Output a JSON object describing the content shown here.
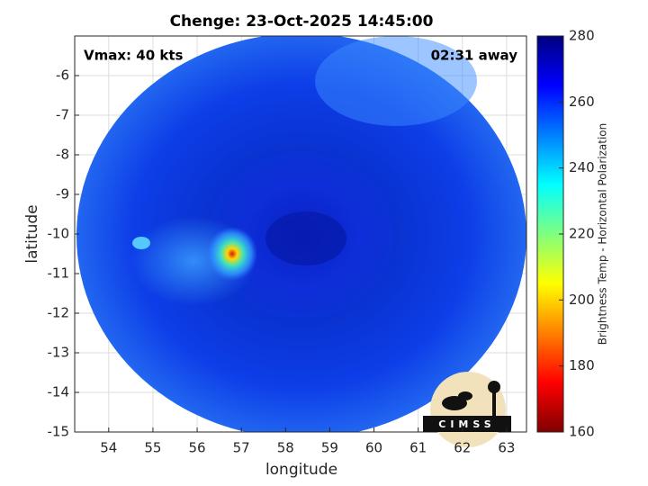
{
  "chart_data": {
    "type": "image",
    "title": "Chenge: 23-Oct-2025 14:45:00",
    "annotations": [
      "Vmax: 40 kts",
      "02:31 away"
    ],
    "xlabel": "longitude",
    "ylabel": "latitude",
    "xlim": [
      53.23,
      63.45
    ],
    "ylim": [
      -15,
      -5
    ],
    "xticks": [
      54,
      55,
      56,
      57,
      58,
      59,
      60,
      61,
      62,
      63
    ],
    "yticks": [
      -15,
      -14,
      -13,
      -12,
      -11,
      -10,
      -9,
      -8,
      -7,
      -6
    ],
    "grid": true,
    "colorbar": {
      "label": "Brightness Temp - Horizontal Polarization",
      "lim": [
        160,
        280
      ],
      "ticks": [
        160,
        180,
        200,
        220,
        240,
        260,
        280
      ]
    },
    "logo_text": "CIMSS"
  }
}
